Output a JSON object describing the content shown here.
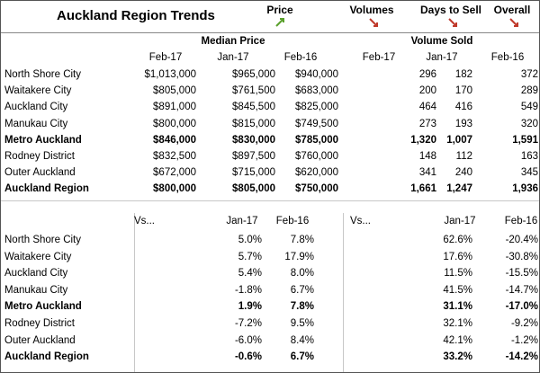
{
  "header": {
    "title": "Auckland Region Trends",
    "indicators": [
      "Price",
      "Volumes",
      "Days to Sell",
      "Overall"
    ]
  },
  "table1": {
    "group_headers": [
      "Median Price",
      "Volume Sold"
    ],
    "columns": [
      "Feb-17",
      "Jan-17",
      "Feb-16",
      "Feb-17",
      "Jan-17",
      "Feb-16"
    ],
    "rows": [
      {
        "label": "North Shore City",
        "values": [
          "$1,013,000",
          "$965,000",
          "$940,000",
          "296",
          "182",
          "372"
        ]
      },
      {
        "label": "Waitakere City",
        "values": [
          "$805,000",
          "$761,500",
          "$683,000",
          "200",
          "170",
          "289"
        ]
      },
      {
        "label": "Auckland City",
        "values": [
          "$891,000",
          "$845,500",
          "$825,000",
          "464",
          "416",
          "549"
        ]
      },
      {
        "label": "Manukau City",
        "values": [
          "$800,000",
          "$815,000",
          "$749,500",
          "273",
          "193",
          "320"
        ]
      },
      {
        "label": "Metro Auckland",
        "bold": true,
        "values": [
          "$846,000",
          "$830,000",
          "$785,000",
          "1,320",
          "1,007",
          "1,591"
        ]
      },
      {
        "label": "Rodney District",
        "values": [
          "$832,500",
          "$897,500",
          "$760,000",
          "148",
          "112",
          "163"
        ]
      },
      {
        "label": "Outer Auckland",
        "values": [
          "$672,000",
          "$715,000",
          "$620,000",
          "341",
          "240",
          "345"
        ]
      },
      {
        "label": "Auckland Region",
        "bold": true,
        "values": [
          "$800,000",
          "$805,000",
          "$750,000",
          "1,661",
          "1,247",
          "1,936"
        ]
      }
    ]
  },
  "table2": {
    "columns": [
      "Vs...",
      "Jan-17",
      "Feb-16",
      "Vs...",
      "Jan-17",
      "Feb-16"
    ],
    "rows": [
      {
        "label": "North Shore City",
        "values": [
          "5.0%",
          "7.8%",
          "62.6%",
          "-20.4%"
        ]
      },
      {
        "label": "Waitakere City",
        "values": [
          "5.7%",
          "17.9%",
          "17.6%",
          "-30.8%"
        ]
      },
      {
        "label": "Auckland City",
        "values": [
          "5.4%",
          "8.0%",
          "11.5%",
          "-15.5%"
        ]
      },
      {
        "label": "Manukau City",
        "values": [
          "-1.8%",
          "6.7%",
          "41.5%",
          "-14.7%"
        ]
      },
      {
        "label": "Metro Auckland",
        "bold": true,
        "values": [
          "1.9%",
          "7.8%",
          "31.1%",
          "-17.0%"
        ]
      },
      {
        "label": "Rodney District",
        "values": [
          "-7.2%",
          "9.5%",
          "32.1%",
          "-9.2%"
        ]
      },
      {
        "label": "Outer Auckland",
        "values": [
          "-6.0%",
          "8.4%",
          "42.1%",
          "-1.2%"
        ]
      },
      {
        "label": "Auckland Region",
        "bold": true,
        "values": [
          "-0.6%",
          "6.7%",
          "33.2%",
          "-14.2%"
        ]
      }
    ]
  }
}
